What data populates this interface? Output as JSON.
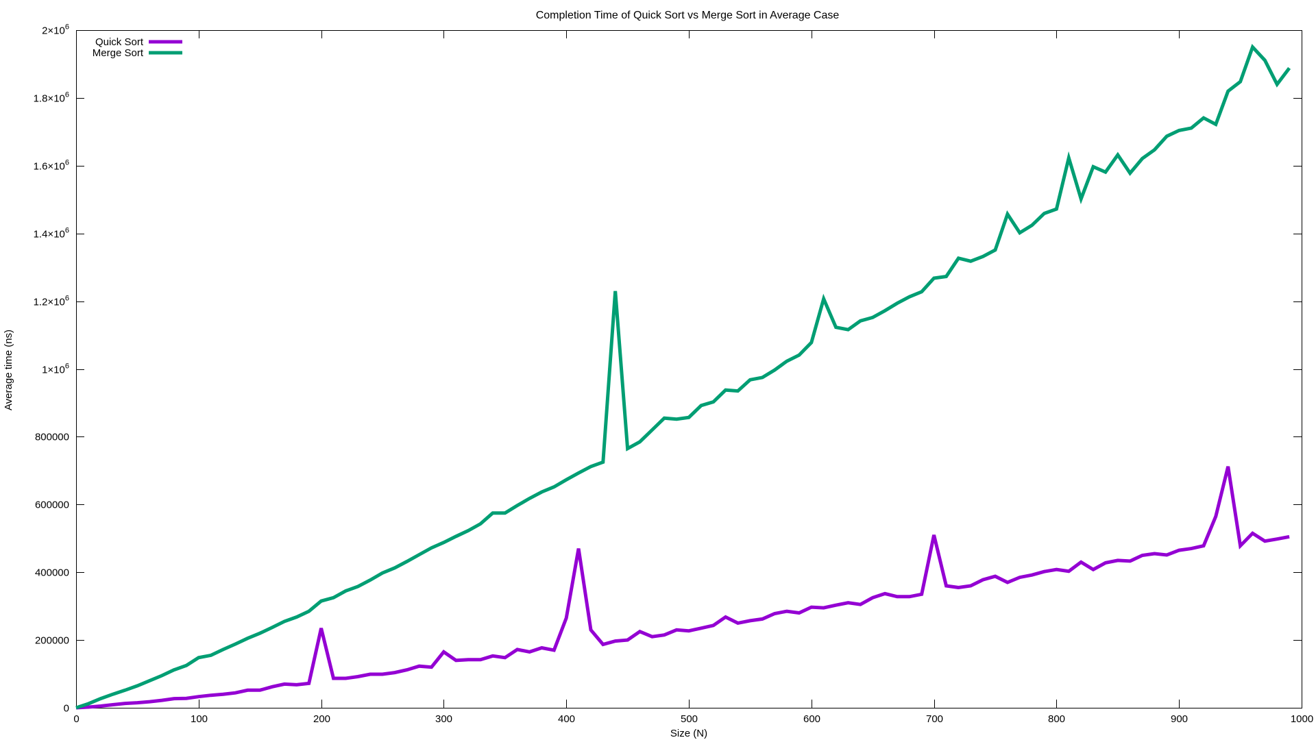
{
  "chart_data": {
    "type": "line",
    "title": "Completion Time of Quick Sort vs Merge Sort in Average Case",
    "xlabel": "Size (N)",
    "ylabel": "Average time (ns)",
    "xlim": [
      0,
      1000
    ],
    "ylim": [
      0,
      2000000
    ],
    "grid": false,
    "legend_position": "top-left",
    "x_ticks": [
      0,
      100,
      200,
      300,
      400,
      500,
      600,
      700,
      800,
      900,
      1000
    ],
    "x_tick_labels": [
      "0",
      "100",
      "200",
      "300",
      "400",
      "500",
      "600",
      "700",
      "800",
      "900",
      "1000"
    ],
    "y_ticks": [
      0,
      200000,
      400000,
      600000,
      800000,
      1000000,
      1200000,
      1400000,
      1600000,
      1800000,
      2000000
    ],
    "y_tick_labels": [
      {
        "base": "0",
        "exp": ""
      },
      {
        "base": "200000",
        "exp": ""
      },
      {
        "base": "400000",
        "exp": ""
      },
      {
        "base": "600000",
        "exp": ""
      },
      {
        "base": "800000",
        "exp": ""
      },
      {
        "base": "1×10",
        "exp": "6"
      },
      {
        "base": "1.2×10",
        "exp": "6"
      },
      {
        "base": "1.4×10",
        "exp": "6"
      },
      {
        "base": "1.6×10",
        "exp": "6"
      },
      {
        "base": "1.8×10",
        "exp": "6"
      },
      {
        "base": "2×10",
        "exp": "6"
      }
    ],
    "x": [
      0,
      10,
      20,
      30,
      40,
      50,
      60,
      70,
      80,
      90,
      100,
      110,
      120,
      130,
      140,
      150,
      160,
      170,
      180,
      190,
      200,
      210,
      220,
      230,
      240,
      250,
      260,
      270,
      280,
      290,
      300,
      310,
      320,
      330,
      340,
      350,
      360,
      370,
      380,
      390,
      400,
      410,
      420,
      430,
      440,
      450,
      460,
      470,
      480,
      490,
      500,
      510,
      520,
      530,
      540,
      550,
      560,
      570,
      580,
      590,
      600,
      610,
      620,
      630,
      640,
      650,
      660,
      670,
      680,
      690,
      700,
      710,
      720,
      730,
      740,
      750,
      760,
      770,
      780,
      790,
      800,
      810,
      820,
      830,
      840,
      850,
      860,
      870,
      880,
      890,
      900,
      910,
      920,
      930,
      940,
      950,
      960,
      970,
      980,
      990
    ],
    "series": [
      {
        "name": "Quick Sort",
        "color": "#9400d3",
        "values": [
          0,
          2000,
          5000,
          9000,
          13000,
          15000,
          18000,
          22000,
          27000,
          28000,
          33000,
          37000,
          40000,
          44000,
          52000,
          52000,
          62000,
          70000,
          68000,
          72000,
          235000,
          87000,
          87000,
          92000,
          99000,
          99000,
          104000,
          112000,
          123000,
          120000,
          165000,
          140000,
          142000,
          142000,
          153000,
          148000,
          172000,
          165000,
          177000,
          170000,
          265000,
          470000,
          230000,
          187000,
          197000,
          200000,
          225000,
          210000,
          215000,
          230000,
          227000,
          235000,
          243000,
          268000,
          250000,
          257000,
          262000,
          278000,
          285000,
          280000,
          297000,
          295000,
          303000,
          310000,
          305000,
          325000,
          337000,
          328000,
          328000,
          335000,
          510000,
          360000,
          355000,
          360000,
          378000,
          388000,
          370000,
          385000,
          392000,
          402000,
          408000,
          403000,
          430000,
          408000,
          428000,
          435000,
          433000,
          450000,
          455000,
          451000,
          465000,
          470000,
          478000,
          565000,
          712000,
          478000,
          515000,
          492000,
          498000,
          505000
        ]
      },
      {
        "name": "Merge Sort",
        "color": "#009e73",
        "values": [
          0,
          12000,
          27000,
          40000,
          52000,
          65000,
          80000,
          95000,
          112000,
          125000,
          148000,
          155000,
          172000,
          188000,
          205000,
          220000,
          237000,
          255000,
          268000,
          285000,
          315000,
          325000,
          345000,
          358000,
          377000,
          398000,
          413000,
          432000,
          452000,
          472000,
          488000,
          506000,
          523000,
          543000,
          575000,
          575000,
          597000,
          618000,
          637000,
          652000,
          673000,
          693000,
          712000,
          725000,
          1230000,
          765000,
          785000,
          820000,
          855000,
          852000,
          857000,
          892000,
          903000,
          938000,
          935000,
          968000,
          975000,
          997000,
          1023000,
          1041000,
          1078000,
          1207000,
          1123000,
          1116000,
          1142000,
          1152000,
          1172000,
          1194000,
          1213000,
          1228000,
          1268000,
          1273000,
          1327000,
          1318000,
          1332000,
          1351000,
          1457000,
          1402000,
          1424000,
          1459000,
          1472000,
          1623000,
          1502000,
          1597000,
          1581000,
          1632000,
          1578000,
          1621000,
          1647000,
          1687000,
          1704000,
          1711000,
          1741000,
          1722000,
          1820000,
          1848000,
          1950000,
          1911000,
          1840000,
          1888000
        ]
      }
    ]
  }
}
